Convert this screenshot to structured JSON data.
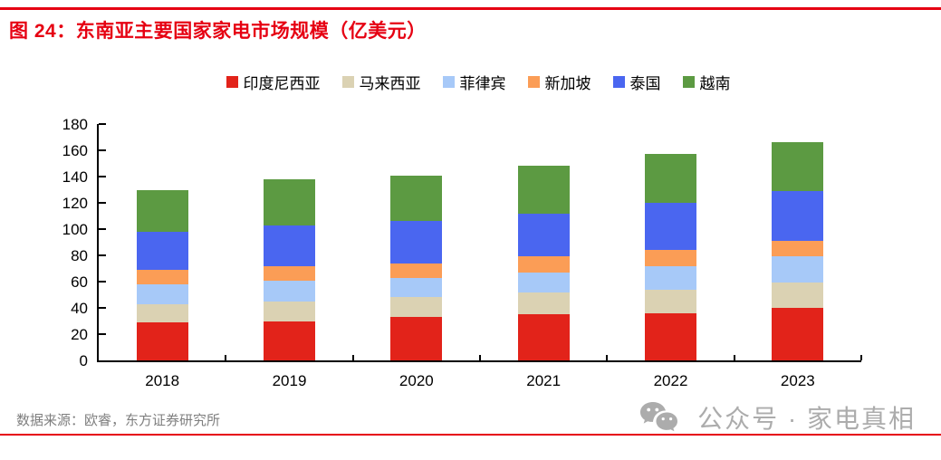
{
  "header": {
    "accent_color": "#e60012"
  },
  "chart_data": {
    "type": "bar",
    "stacked": true,
    "title": "图 24：东南亚主要国家家电市场规模（亿美元）",
    "categories": [
      "2018",
      "2019",
      "2020",
      "2021",
      "2022",
      "2023"
    ],
    "series": [
      {
        "name": "印度尼西亚",
        "color": "#e2231a",
        "values": [
          29,
          30,
          33,
          35,
          36,
          40
        ]
      },
      {
        "name": "马来西亚",
        "color": "#dbd2b3",
        "values": [
          14,
          15,
          15,
          17,
          18,
          19
        ]
      },
      {
        "name": "菲律宾",
        "color": "#a7c9f8",
        "values": [
          15,
          16,
          15,
          15,
          18,
          20
        ]
      },
      {
        "name": "新加坡",
        "color": "#fb9d56",
        "values": [
          11,
          11,
          11,
          12,
          12,
          12
        ]
      },
      {
        "name": "泰国",
        "color": "#4a66f0",
        "values": [
          29,
          31,
          32,
          33,
          36,
          38
        ]
      },
      {
        "name": "越南",
        "color": "#5c9a42",
        "values": [
          32,
          35,
          35,
          36,
          37,
          37
        ]
      }
    ],
    "totals": [
      130,
      138,
      141,
      148,
      157,
      166
    ],
    "ylim": [
      0,
      180
    ],
    "yticks": [
      0,
      20,
      40,
      60,
      80,
      100,
      120,
      140,
      160,
      180
    ],
    "xlabel": "",
    "ylabel": "",
    "grid": false,
    "legend_position": "top"
  },
  "footer": {
    "source": "数据来源：欧睿，东方证券研究所",
    "brand": "公众号 · 家电真相"
  }
}
